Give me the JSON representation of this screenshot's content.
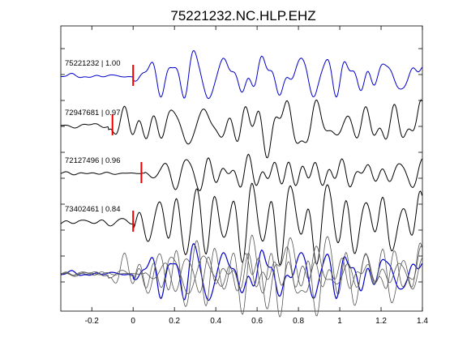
{
  "chart_data": {
    "type": "line",
    "title": "75221232.NC.HLP.EHZ",
    "xlabel": "",
    "ylabel": "",
    "xlim": [
      -0.35,
      1.4
    ],
    "xticks": [
      -0.2,
      0,
      0.2,
      0.4,
      0.6,
      0.8,
      1,
      1.2,
      1.4
    ],
    "xtick_labels": [
      "-0.2",
      "0",
      "0.2",
      "0.4",
      "0.6",
      "0.8",
      "1",
      "1.2",
      "1.4"
    ],
    "grid": false,
    "legend": "none",
    "colors": {
      "reference": "#0000cc",
      "trace": "#000000",
      "overlay": "#555555",
      "pick": "#ee0000"
    },
    "series": [
      {
        "id": "75221232",
        "label": "75221232 | 1.00",
        "pick_time": 0.0,
        "color": "#0000cc"
      },
      {
        "id": "72947681",
        "label": "72947681 | 0.97",
        "pick_time": -0.1,
        "color": "#000000"
      },
      {
        "id": "72127496",
        "label": "72127496 | 0.96",
        "pick_time": 0.04,
        "color": "#000000"
      },
      {
        "id": "73402461",
        "label": "73402461 | 0.84",
        "pick_time": 0.0,
        "color": "#000000"
      }
    ],
    "overlay": {
      "description_shown": false
    }
  }
}
